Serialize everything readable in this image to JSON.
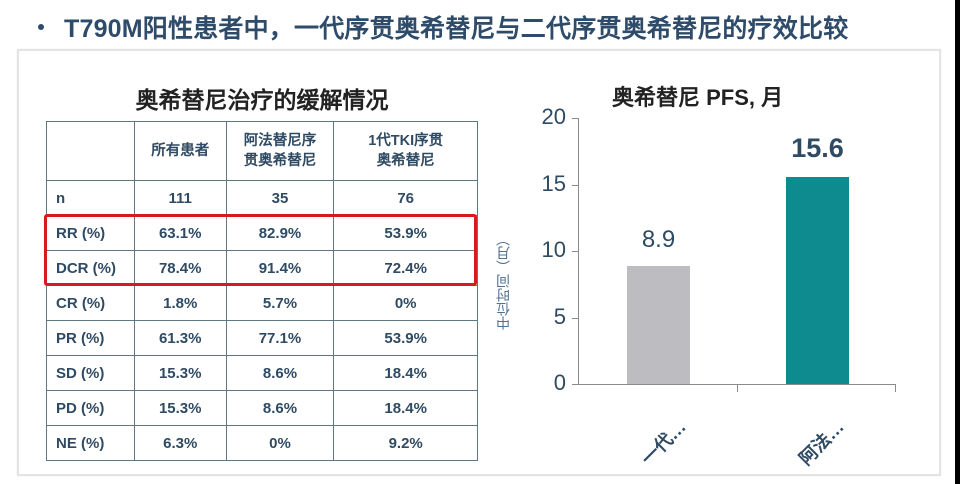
{
  "slide": {
    "title": "T790M阳性患者中，一代序贯奥希替尼与二代序贯奥希替尼的疗效比较"
  },
  "table": {
    "title": "奥希替尼治疗的缓解情况",
    "headers": [
      "",
      "所有患者",
      "阿法替尼序贯奥希替尼",
      "1代TKI序贯奥希替尼"
    ],
    "header_lines": [
      [
        ""
      ],
      [
        "所有患者"
      ],
      [
        "阿法替尼序",
        "贯奥希替尼"
      ],
      [
        "1代TKI序贯",
        "奥希替尼"
      ]
    ],
    "rows": [
      {
        "label": "n",
        "values": [
          "111",
          "35",
          "76"
        ]
      },
      {
        "label": "RR (%)",
        "values": [
          "63.1%",
          "82.9%",
          "53.9%"
        ]
      },
      {
        "label": "DCR (%)",
        "values": [
          "78.4%",
          "91.4%",
          "72.4%"
        ]
      },
      {
        "label": "CR (%)",
        "values": [
          "1.8%",
          "5.7%",
          "0%"
        ]
      },
      {
        "label": "PR (%)",
        "values": [
          "61.3%",
          "77.1%",
          "53.9%"
        ]
      },
      {
        "label": "SD (%)",
        "values": [
          "15.3%",
          "8.6%",
          "18.4%"
        ]
      },
      {
        "label": "PD (%)",
        "values": [
          "15.3%",
          "8.6%",
          "18.4%"
        ]
      },
      {
        "label": "NE (%)",
        "values": [
          "6.3%",
          "0%",
          "9.2%"
        ]
      }
    ],
    "highlighted_rows": [
      "RR (%)",
      "DCR (%)"
    ],
    "highlight_color": "#d8191f"
  },
  "chart_data": {
    "type": "bar",
    "title": "奥希替尼 PFS, 月",
    "categories": [
      "一代…",
      "阿法…"
    ],
    "values": [
      8.9,
      15.6
    ],
    "value_labels": [
      "8.9",
      "15.6"
    ],
    "colors": [
      "#bdbcc0",
      "#0e8b8e"
    ],
    "xlabel": "",
    "ylabel": "中位时间（月）",
    "ylim": [
      0,
      20
    ],
    "yticks": [
      0,
      5,
      10,
      15,
      20
    ],
    "grid": false,
    "legend": null
  }
}
